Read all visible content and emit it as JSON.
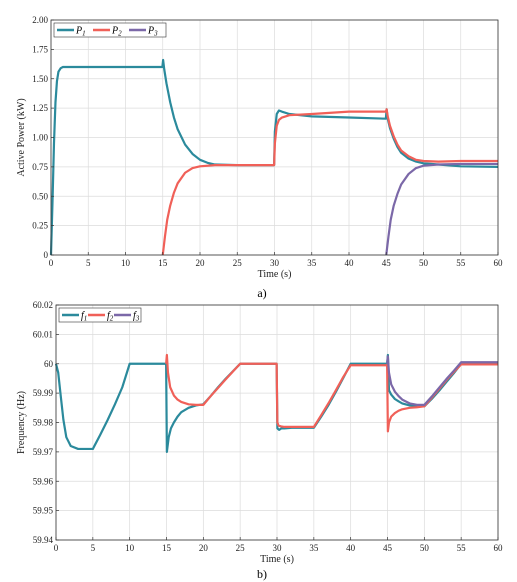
{
  "chart_data": [
    {
      "type": "line",
      "panel_label": "a)",
      "xlabel": "Time (s)",
      "ylabel": "Active Power (kW)",
      "xlim": [
        0,
        60
      ],
      "ylim": [
        0,
        2
      ],
      "xticks": [
        0,
        5,
        10,
        15,
        20,
        25,
        30,
        35,
        40,
        45,
        50,
        55,
        60
      ],
      "yticks": [
        0,
        0.25,
        0.5,
        0.75,
        1,
        1.25,
        1.5,
        1.75,
        2
      ],
      "ytick_labels": [
        "0",
        "0.25",
        "0.50",
        "0.75",
        "1.00",
        "1.25",
        "1.50",
        "1.75",
        "2.00"
      ],
      "grid": true,
      "legend_position": "top-left",
      "series": [
        {
          "name": "P1",
          "label_base": "P",
          "label_sub": "1",
          "color": "#2b8a9c",
          "x": [
            0,
            0.2,
            0.4,
            0.6,
            0.8,
            1.0,
            1.3,
            1.6,
            2.0,
            5,
            10,
            14.95,
            15.05,
            15.2,
            15.5,
            16,
            16.5,
            17,
            18,
            19,
            20,
            21,
            22,
            25,
            29.95,
            30.05,
            30.3,
            30.6,
            31,
            32,
            35,
            40,
            44.95,
            45.05,
            45.2,
            45.5,
            46,
            46.5,
            47,
            48,
            49,
            50,
            52,
            55,
            60
          ],
          "y": [
            0,
            0.45,
            0.95,
            1.3,
            1.48,
            1.56,
            1.59,
            1.6,
            1.6,
            1.6,
            1.6,
            1.6,
            1.66,
            1.58,
            1.46,
            1.3,
            1.17,
            1.07,
            0.94,
            0.86,
            0.81,
            0.785,
            0.77,
            0.765,
            0.765,
            1.05,
            1.2,
            1.23,
            1.22,
            1.2,
            1.18,
            1.17,
            1.16,
            1.24,
            1.16,
            1.08,
            0.99,
            0.92,
            0.87,
            0.82,
            0.795,
            0.78,
            0.77,
            0.755,
            0.75
          ]
        },
        {
          "name": "P2",
          "label_base": "P",
          "label_sub": "2",
          "color": "#f06058",
          "x": [
            15,
            15.3,
            15.6,
            16,
            16.5,
            17,
            18,
            19,
            20,
            22,
            25,
            29.95,
            30.05,
            30.3,
            30.6,
            31,
            32,
            35,
            40,
            44.95,
            45.05,
            45.2,
            45.5,
            46,
            46.5,
            47,
            48,
            49,
            50,
            52,
            55,
            60
          ],
          "y": [
            0,
            0.16,
            0.3,
            0.42,
            0.53,
            0.61,
            0.7,
            0.74,
            0.755,
            0.765,
            0.765,
            0.765,
            0.95,
            1.1,
            1.15,
            1.17,
            1.19,
            1.2,
            1.22,
            1.22,
            1.24,
            1.18,
            1.1,
            1.01,
            0.94,
            0.89,
            0.84,
            0.81,
            0.8,
            0.795,
            0.8,
            0.8
          ]
        },
        {
          "name": "P3",
          "label_base": "P",
          "label_sub": "3",
          "color": "#7b68a8",
          "x": [
            45,
            45.3,
            45.6,
            46,
            46.5,
            47,
            48,
            49,
            50,
            52,
            55,
            60
          ],
          "y": [
            0,
            0.16,
            0.3,
            0.42,
            0.52,
            0.6,
            0.69,
            0.74,
            0.76,
            0.77,
            0.775,
            0.775
          ]
        }
      ]
    },
    {
      "type": "line",
      "panel_label": "b)",
      "xlabel": "Time (s)",
      "ylabel": "Frequency (Hz)",
      "xlim": [
        0,
        60
      ],
      "ylim": [
        59.94,
        60.02
      ],
      "xticks": [
        0,
        5,
        10,
        15,
        20,
        25,
        30,
        35,
        40,
        45,
        50,
        55,
        60
      ],
      "yticks": [
        59.94,
        59.95,
        59.96,
        59.97,
        59.98,
        59.99,
        60,
        60.01,
        60.02
      ],
      "ytick_labels": [
        "59.94",
        "59.95",
        "59.96",
        "59.97",
        "59.98",
        "59.99",
        "60",
        "60.01",
        "60.02"
      ],
      "grid": true,
      "legend_position": "top-left",
      "series": [
        {
          "name": "f1",
          "label_base": "f",
          "label_sub": "1",
          "color": "#2b8a9c",
          "x": [
            0,
            0.3,
            0.6,
            1.0,
            1.4,
            2.0,
            3,
            5,
            6,
            7,
            8,
            9,
            10,
            14.95,
            15.05,
            15.3,
            15.6,
            16,
            16.5,
            17,
            18,
            19,
            20,
            21,
            22,
            23,
            24,
            25,
            29.95,
            30.05,
            30.3,
            30.6,
            31,
            32,
            35,
            36,
            37,
            38,
            39,
            40,
            44.95,
            45.05,
            45.2,
            45.5,
            46,
            46.5,
            47,
            48,
            49,
            50,
            51,
            52,
            53,
            54,
            55,
            60
          ],
          "y": [
            60,
            59.997,
            59.99,
            59.981,
            59.975,
            59.972,
            59.971,
            59.971,
            59.9758,
            59.9808,
            59.9862,
            59.992,
            60,
            60,
            59.97,
            59.975,
            59.978,
            59.98,
            59.982,
            59.9835,
            59.985,
            59.9858,
            59.9862,
            59.989,
            59.992,
            59.9948,
            59.9974,
            60,
            60,
            59.978,
            59.9775,
            59.978,
            59.978,
            59.9782,
            59.9782,
            59.982,
            59.986,
            59.9905,
            59.9952,
            60,
            60,
            60.003,
            59.991,
            59.9895,
            59.988,
            59.9872,
            59.9865,
            59.9858,
            59.9855,
            59.9855,
            59.988,
            59.9908,
            59.9938,
            59.9968,
            60,
            60
          ]
        },
        {
          "name": "f2",
          "label_base": "f",
          "label_sub": "2",
          "color": "#f06058",
          "x": [
            14.95,
            15.05,
            15.2,
            15.5,
            16,
            16.5,
            17,
            18,
            19,
            20,
            21,
            22,
            23,
            24,
            25,
            29.95,
            30.05,
            30.2,
            30.5,
            31,
            32,
            35,
            36,
            37,
            38,
            39,
            40,
            44.95,
            45.05,
            45.2,
            45.5,
            46,
            46.5,
            47,
            48,
            49,
            50,
            51,
            52,
            53,
            54,
            55,
            60
          ],
          "y": [
            60,
            60.003,
            59.997,
            59.992,
            59.9892,
            59.9878,
            59.987,
            59.9862,
            59.986,
            59.986,
            59.989,
            59.9918,
            59.9946,
            59.9973,
            60,
            60,
            59.98,
            59.979,
            59.9787,
            59.9785,
            59.9785,
            59.9785,
            59.9825,
            59.9866,
            59.991,
            59.9955,
            59.9995,
            59.9995,
            59.977,
            59.98,
            59.982,
            59.9832,
            59.984,
            59.9845,
            59.985,
            59.9852,
            59.9855,
            59.9884,
            59.9914,
            59.9944,
            59.9972,
            59.9998,
            59.9998
          ]
        },
        {
          "name": "f3",
          "label_base": "f",
          "label_sub": "3",
          "color": "#7b68a8",
          "x": [
            44.95,
            45.05,
            45.2,
            45.5,
            46,
            46.5,
            47,
            48,
            49,
            50,
            51,
            52,
            53,
            54,
            55,
            60
          ],
          "y": [
            60,
            60.0025,
            59.997,
            59.993,
            59.9905,
            59.989,
            59.9878,
            59.9865,
            59.986,
            59.986,
            59.9888,
            59.9918,
            59.9948,
            59.9976,
            60.0005,
            60.0005
          ]
        }
      ]
    }
  ]
}
